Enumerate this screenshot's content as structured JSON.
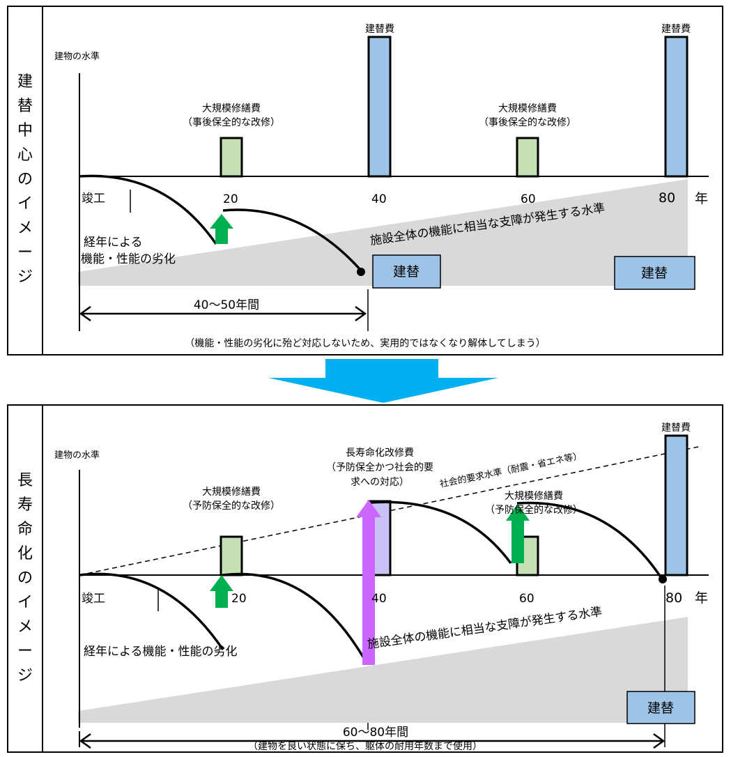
{
  "top": {
    "side_title": [
      "建",
      "替",
      "中",
      "心",
      "の",
      "イ",
      "メ",
      "ー",
      "ジ"
    ],
    "y_label": "建物の水準",
    "cost_rebuild_1": "建替費",
    "cost_rebuild_2": "建替費",
    "repair1_line1": "大規模修繕費",
    "repair1_line2": "（事後保全的な改修）",
    "repair2_line1": "大規模修繕費",
    "repair2_line2": "（事後保全的な改修）",
    "completion": "竣工",
    "tick_20": "20",
    "tick_40": "40",
    "tick_60": "60",
    "tick_80": "80",
    "year_unit": "年",
    "threshold": "施設全体の機能に相当な支障が発生する水準",
    "deterioration_1": "経年による",
    "deterioration_2": "機能・性能の劣化",
    "rebuild_box_1": "建替",
    "rebuild_box_2": "建替",
    "span": "40～50年間",
    "note": "（機能・性能の劣化に殆ど対応しないため、実用的ではなくなり解体してしまう）"
  },
  "bottom": {
    "side_title": [
      "長",
      "寿",
      "命",
      "化",
      "の",
      "イ",
      "メ",
      "ー",
      "ジ"
    ],
    "y_label": "建物の水準",
    "cost_rebuild": "建替費",
    "longlife_line1": "長寿命化改修費",
    "longlife_line2": "（予防保全かつ社会的要",
    "longlife_line3": "求への対応）",
    "repair1_line1": "大規模修繕費",
    "repair1_line2": "（予防保全的な改修）",
    "repair2_line1": "大規模修繕費",
    "repair2_line2": "（予防保全的な改修）",
    "social_level": "社会的要求水準（耐震・省エネ等）",
    "completion": "竣工",
    "tick_20": "20",
    "tick_40": "40",
    "tick_60": "60",
    "tick_80": "80",
    "year_unit": "年",
    "threshold": "施設全体の機能に相当な支障が発生する水準",
    "deterioration": "経年による機能・性能の劣化",
    "rebuild_box": "建替",
    "span": "60～80年間",
    "note": "（建物を良い状態に保ち、躯体の耐用年数まで使用）"
  },
  "colors": {
    "rebuild_bar": "#9dc3e6",
    "repair_bar": "#c5e0b4",
    "longlife_bar": "#c9c3f5",
    "green_arrow": "#00b050",
    "purple_arrow": "#cc66ff",
    "threshold_fill": "#d9d9d9",
    "transition_arrow": "#00b0f0",
    "rebuild_box": "#9dc3e6"
  }
}
